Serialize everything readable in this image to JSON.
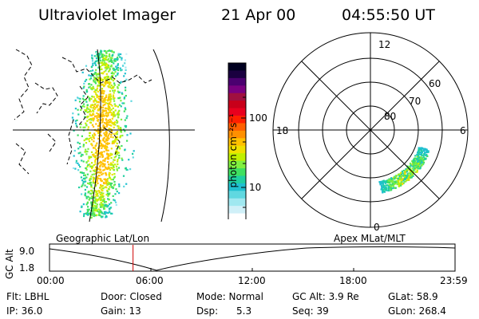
{
  "header": {
    "title": "Ultraviolet Imager",
    "date": "21 Apr 00",
    "time": "04:55:50 UT"
  },
  "colorbar": {
    "unit_label": "photon cm⁻²s⁻¹",
    "ticks": [
      "100",
      "10"
    ],
    "colors": [
      "#000020",
      "#1a0040",
      "#4b0070",
      "#7a0080",
      "#a01040",
      "#c8001a",
      "#e8001e",
      "#ff2000",
      "#ff6000",
      "#ff9000",
      "#ffc000",
      "#f0e000",
      "#c0f000",
      "#80f040",
      "#40e060",
      "#20d0a0",
      "#20c0d0",
      "#60d8e0",
      "#a0e8f0",
      "#d0f0f8",
      "#ffffff"
    ]
  },
  "geo_panel": {
    "label": "Geographic Lat/Lon"
  },
  "polar_panel": {
    "label": "Apex MLat/MLT",
    "mlt_labels": {
      "top": "12",
      "right": "6",
      "bottom": "0",
      "left": "18"
    },
    "lat_labels": [
      "60",
      "70",
      "80"
    ]
  },
  "timeline": {
    "ylabel": "GC Alt",
    "yticks": [
      "9.0",
      "1.8"
    ],
    "xticks": [
      "00:00",
      "06:00",
      "12:00",
      "18:00",
      "23:59"
    ],
    "marker_fraction": 0.206
  },
  "info": {
    "filter": "Flt: LBHL",
    "ip": "IP: 36.0",
    "door": "Door: Closed",
    "gain": "Gain: 13",
    "mode": "Mode: Normal",
    "dsp": "Dsp:      5.3",
    "gc_alt": "GC Alt: 3.9 Re",
    "seq": "Seq: 39",
    "glat": "GLat: 58.9",
    "glon": "GLon: 268.4"
  }
}
